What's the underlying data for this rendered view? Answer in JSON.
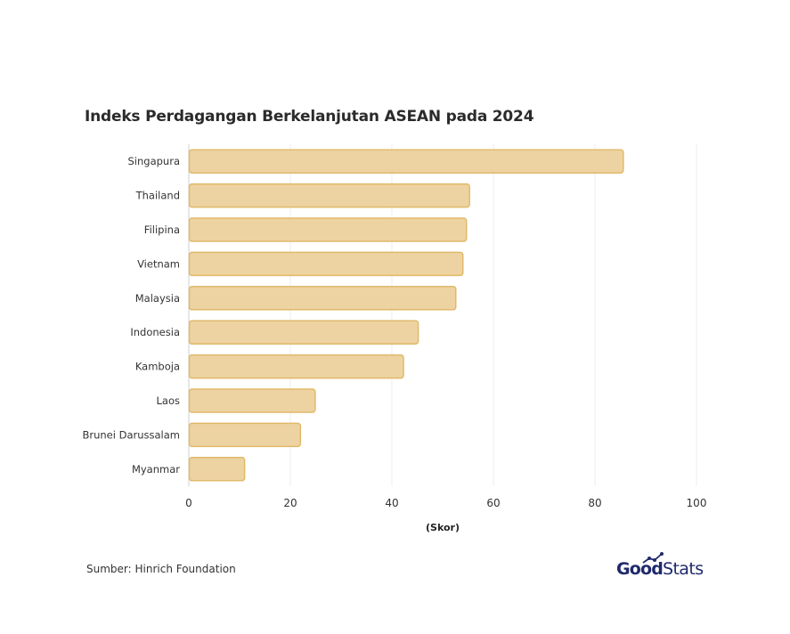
{
  "chart_data": {
    "type": "bar",
    "orientation": "horizontal",
    "title": "Indeks Perdagangan Berkelanjutan ASEAN pada 2024",
    "xlabel": "(Skor)",
    "ylabel": "",
    "xlim": [
      0,
      100
    ],
    "xticks": [
      "0",
      "20",
      "40",
      "60",
      "80",
      "100"
    ],
    "grid": true,
    "categories": [
      "Singapura",
      "Thailand",
      "Filipina",
      "Vietnam",
      "Malaysia",
      "Indonesia",
      "Kamboja",
      "Laos",
      "Brunei Darussalam",
      "Myanmar"
    ],
    "values": [
      85.5,
      55.2,
      54.6,
      53.9,
      52.5,
      45.1,
      42.2,
      24.8,
      21.9,
      10.9
    ],
    "bar_color": "#eed3a2",
    "bar_border_color": "#e0b96a"
  },
  "footer": {
    "source": "Sumber: Hinrich Foundation",
    "logo_good": "Good",
    "logo_stats": "Stats"
  },
  "colors": {
    "title": "#2b2b2b",
    "brand": "#1f2a6b"
  }
}
